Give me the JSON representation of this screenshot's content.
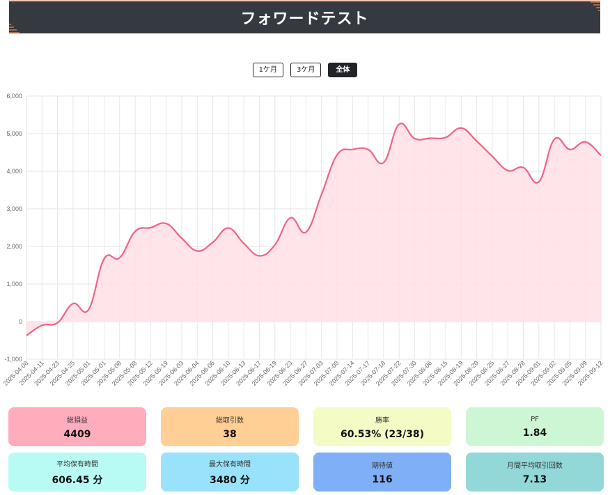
{
  "header": {
    "title": "フォワードテスト"
  },
  "range_buttons": [
    {
      "label": "1ケ月",
      "active": false
    },
    {
      "label": "3ケ月",
      "active": false
    },
    {
      "label": "全体",
      "active": true
    }
  ],
  "colors": {
    "line": "#f06284",
    "fill": "#ffdfe5",
    "grid": "#e6e6e6",
    "header_bg": "#343a40",
    "corner_accent": "#f08a4b"
  },
  "chart_data": {
    "type": "area",
    "x": [
      "2025-04-08",
      "2025-04-11",
      "2025-04-23",
      "2025-04-25",
      "2025-05-01",
      "2025-05-01",
      "2025-05-08",
      "2025-05-08",
      "2025-05-12",
      "2025-05-19",
      "2025-06-03",
      "2025-06-04",
      "2025-06-06",
      "2025-06-10",
      "2025-06-13",
      "2025-06-17",
      "2025-06-19",
      "2025-06-23",
      "2025-06-27",
      "2025-07-03",
      "2025-07-08",
      "2025-07-14",
      "2025-07-17",
      "2025-07-18",
      "2025-07-22",
      "2025-07-30",
      "2025-08-06",
      "2025-08-15",
      "2025-08-19",
      "2025-08-20",
      "2025-08-25",
      "2025-08-27",
      "2025-08-28",
      "2025-09-01",
      "2025-09-02",
      "2025-09-05",
      "2025-09-09",
      "2025-09-12"
    ],
    "series": [
      {
        "values": [
          -370,
          -100,
          -30,
          480,
          320,
          1670,
          1700,
          2400,
          2500,
          2610,
          2220,
          1880,
          2110,
          2490,
          2080,
          1750,
          2040,
          2760,
          2380,
          3380,
          4430,
          4580,
          4580,
          4230,
          5250,
          4870,
          4880,
          4900,
          5150,
          4800,
          4400,
          4020,
          4100,
          3720,
          4850,
          4580,
          4780,
          4420
        ]
      }
    ],
    "y_ticks": [
      "-1,000",
      "0",
      "1,000",
      "2,000",
      "3,000",
      "4,000",
      "5,000",
      "6,000"
    ],
    "ylim": [
      -1000,
      6000
    ],
    "grid": true,
    "legend": "none"
  },
  "stats": [
    {
      "label": "総損益",
      "value": "4409",
      "color": "#ffadbd"
    },
    {
      "label": "総取引数",
      "value": "38",
      "color": "#ffcf96"
    },
    {
      "label": "勝率",
      "value": "60.53% (23/38)",
      "color": "#f4fbc4"
    },
    {
      "label": "PF",
      "value": "1.84",
      "color": "#cdf7d4"
    },
    {
      "label": "平均保有時間",
      "value": "606.45 分",
      "color": "#b8fbf5"
    },
    {
      "label": "最大保有時間",
      "value": "3480 分",
      "color": "#98e2fb"
    },
    {
      "label": "期待値",
      "value": "116",
      "color": "#7fb0f7"
    },
    {
      "label": "月間平均取引回数",
      "value": "7.13",
      "color": "#93d8d8"
    }
  ]
}
